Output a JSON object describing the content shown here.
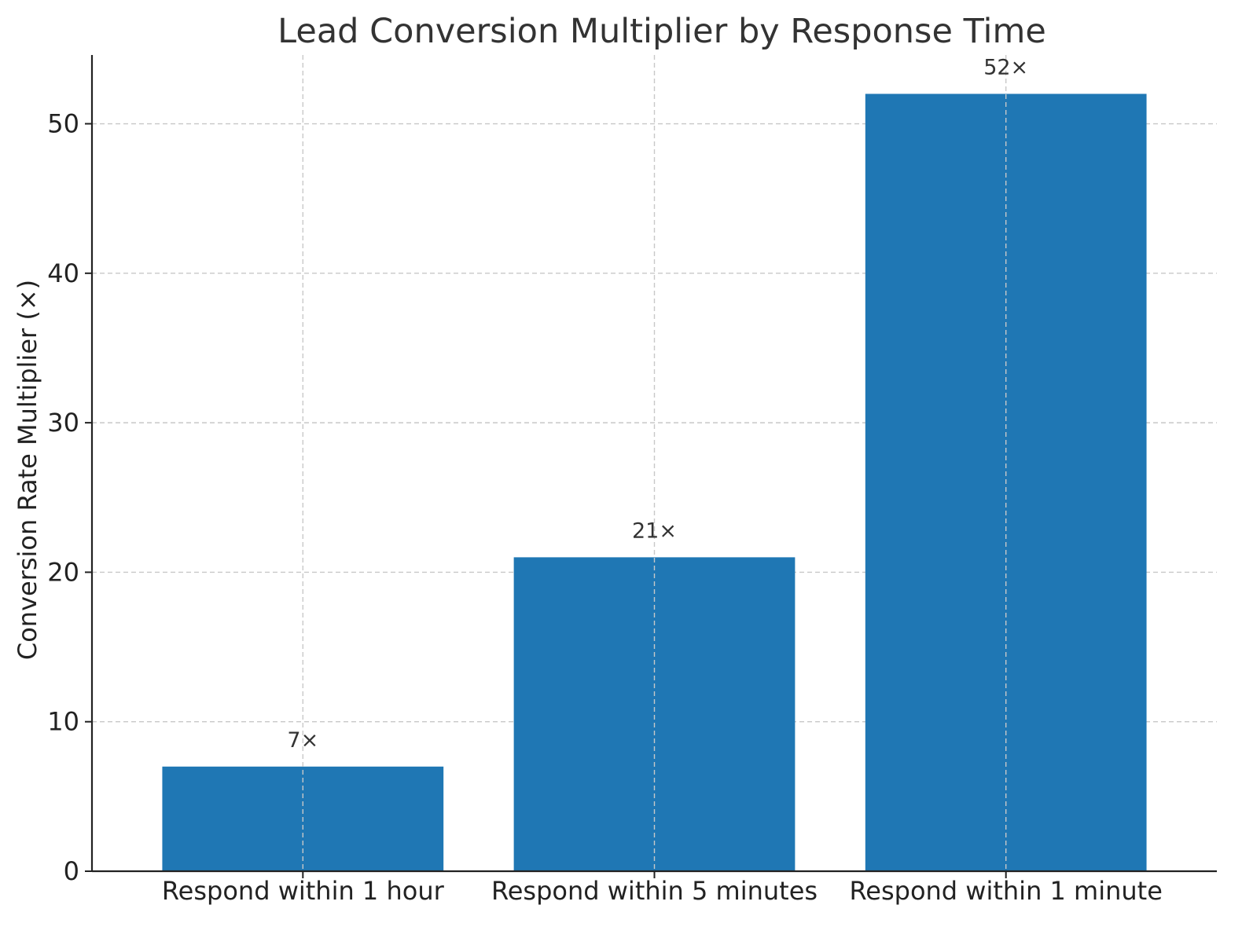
{
  "chart_data": {
    "type": "bar",
    "title": "Lead Conversion Multiplier by Response Time",
    "xlabel": "",
    "ylabel": "Conversion Rate Multiplier (×)",
    "categories": [
      "Respond within 1 hour",
      "Respond within 5 minutes",
      "Respond within 1 minute"
    ],
    "values": [
      7,
      21,
      52
    ],
    "data_labels": [
      "7×",
      "21×",
      "52×"
    ],
    "ylim": [
      0,
      54.6
    ],
    "yticks": [
      0,
      10,
      20,
      30,
      40,
      50
    ],
    "grid": true,
    "bar_color": "#1f77b4"
  }
}
